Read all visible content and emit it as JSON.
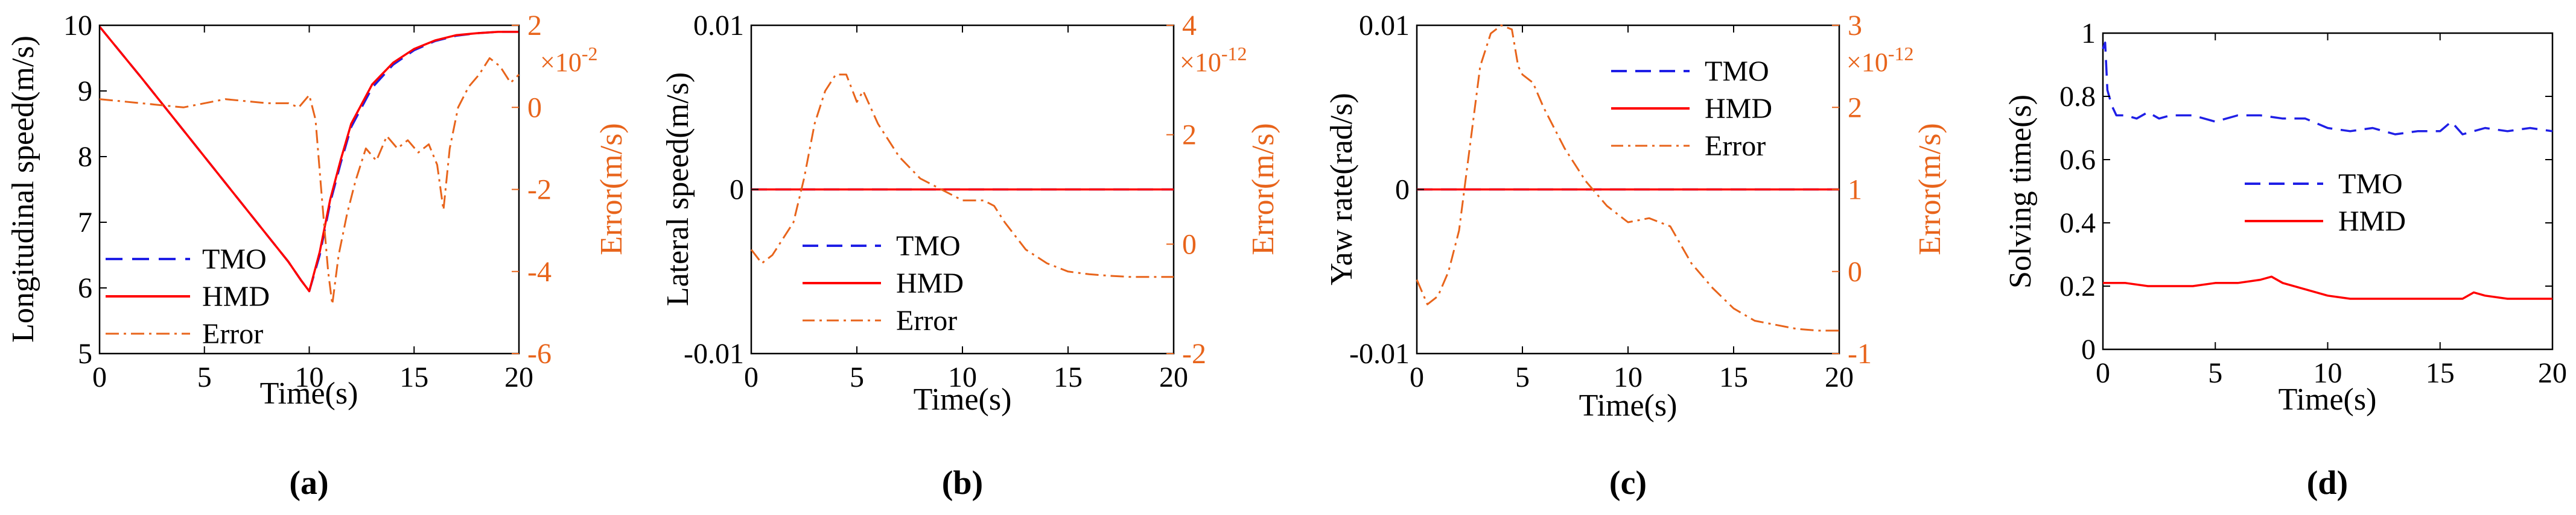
{
  "colors": {
    "tmo": "#1f1fe6",
    "hmd": "#ff0000",
    "error": "#e8641b",
    "axis": "#000000"
  },
  "chart_data": [
    {
      "type": "line",
      "panel_label": "(a)",
      "xlabel": "Time(s)",
      "ylabel": "Longitudinal speed(m/s)",
      "y2label": "Error(m/s)",
      "y2_multiplier": "×10",
      "y2_exponent": "-2",
      "xlim": [
        0,
        20
      ],
      "ylim": [
        5,
        10
      ],
      "y2lim": [
        -6,
        2
      ],
      "xticks": [
        "0",
        "5",
        "10",
        "15",
        "20"
      ],
      "yticks": [
        "5",
        "6",
        "7",
        "8",
        "9",
        "10"
      ],
      "y2ticks": [
        "-6",
        "-4",
        "-2",
        "0",
        "2"
      ],
      "legend_placement": "bottom-left",
      "series": [
        {
          "name": "TMO",
          "axis": "left",
          "style": "dashed",
          "x": [
            0,
            2,
            4,
            6,
            8,
            9,
            9.6,
            10,
            10.5,
            11,
            11.5,
            12,
            13,
            14,
            15,
            16,
            17,
            18,
            19,
            20
          ],
          "y": [
            9.98,
            9.2,
            8.4,
            7.6,
            6.8,
            6.4,
            6.12,
            5.95,
            6.5,
            7.3,
            7.9,
            8.45,
            9.05,
            9.4,
            9.62,
            9.76,
            9.84,
            9.88,
            9.9,
            9.9
          ]
        },
        {
          "name": "HMD",
          "axis": "left",
          "style": "solid",
          "x": [
            0,
            2,
            4,
            6,
            8,
            9,
            9.6,
            10,
            10.5,
            11,
            11.5,
            12,
            13,
            14,
            15,
            16,
            17,
            18,
            19,
            20
          ],
          "y": [
            9.98,
            9.2,
            8.4,
            7.6,
            6.8,
            6.4,
            6.12,
            5.95,
            6.55,
            7.35,
            7.95,
            8.5,
            9.1,
            9.43,
            9.64,
            9.77,
            9.85,
            9.88,
            9.9,
            9.9
          ]
        },
        {
          "name": "Error",
          "axis": "right",
          "style": "dashdot",
          "x": [
            0,
            2,
            4,
            6,
            8,
            9,
            9.5,
            10,
            10.3,
            10.6,
            10.9,
            11.1,
            11.4,
            11.8,
            12.2,
            12.7,
            13.2,
            13.7,
            14.2,
            14.7,
            15.2,
            15.7,
            16.1,
            16.4,
            16.7,
            17.1,
            17.6,
            18.1,
            18.6,
            19.1,
            19.6,
            20
          ],
          "y": [
            0.2,
            0.1,
            0.0,
            0.2,
            0.1,
            0.1,
            0.0,
            0.3,
            -0.3,
            -2.2,
            -4.0,
            -4.8,
            -3.6,
            -2.6,
            -1.8,
            -1.0,
            -1.3,
            -0.7,
            -1.0,
            -0.8,
            -1.1,
            -0.9,
            -1.4,
            -2.5,
            -1.0,
            0.0,
            0.5,
            0.8,
            1.2,
            1.0,
            0.6,
            0.8
          ]
        }
      ]
    },
    {
      "type": "line",
      "panel_label": "(b)",
      "xlabel": "Time(s)",
      "ylabel": "Lateral speed(m/s)",
      "y2label": "Error(m/s)",
      "y2_multiplier": "×10",
      "y2_exponent": "-12",
      "xlim": [
        0,
        20
      ],
      "ylim": [
        -0.01,
        0.01
      ],
      "y2lim": [
        -2,
        4
      ],
      "xticks": [
        "0",
        "5",
        "10",
        "15",
        "20"
      ],
      "yticks": [
        "-0.01",
        "0",
        "0.01"
      ],
      "y2ticks": [
        "-2",
        "0",
        "2",
        "4"
      ],
      "legend_placement": "bottom-left",
      "series": [
        {
          "name": "TMO",
          "axis": "left",
          "style": "dashed",
          "x": [
            0,
            20
          ],
          "y": [
            0,
            0
          ]
        },
        {
          "name": "HMD",
          "axis": "left",
          "style": "solid",
          "x": [
            0,
            20
          ],
          "y": [
            0,
            0
          ]
        },
        {
          "name": "Error",
          "axis": "right",
          "style": "dashdot",
          "x": [
            0,
            0.5,
            1,
            1.5,
            2,
            2.5,
            3,
            3.5,
            4,
            4.5,
            4.8,
            5,
            5.3,
            6,
            7,
            8,
            9,
            10,
            11,
            11.5,
            12,
            13,
            14,
            15,
            16,
            17,
            18,
            19,
            20
          ],
          "y": [
            -0.1,
            -0.35,
            -0.2,
            0.1,
            0.4,
            1.2,
            2.2,
            2.8,
            3.1,
            3.1,
            2.8,
            2.6,
            2.8,
            2.2,
            1.6,
            1.2,
            1.0,
            0.8,
            0.8,
            0.7,
            0.4,
            -0.1,
            -0.35,
            -0.5,
            -0.55,
            -0.58,
            -0.6,
            -0.6,
            -0.6
          ]
        }
      ]
    },
    {
      "type": "line",
      "panel_label": "(c)",
      "xlabel": "Time(s)",
      "ylabel": "Yaw rate(rad/s)",
      "y2label": "Error(m/s)",
      "y2_multiplier": "×10",
      "y2_exponent": "-12",
      "xlim": [
        0,
        20
      ],
      "ylim": [
        -0.01,
        0.01
      ],
      "y2lim": [
        -1,
        3
      ],
      "xticks": [
        "0",
        "5",
        "10",
        "15",
        "20"
      ],
      "yticks": [
        "-0.01",
        "0",
        "0.01"
      ],
      "y2ticks": [
        "-1",
        "0",
        "1",
        "2",
        "3"
      ],
      "legend_placement": "top-right",
      "series": [
        {
          "name": "TMO",
          "axis": "left",
          "style": "dashed",
          "x": [
            0,
            20
          ],
          "y": [
            0,
            0
          ]
        },
        {
          "name": "HMD",
          "axis": "left",
          "style": "solid",
          "x": [
            0,
            20
          ],
          "y": [
            0,
            0
          ]
        },
        {
          "name": "Error",
          "axis": "right",
          "style": "dashdot",
          "x": [
            0,
            0.5,
            1,
            1.5,
            2,
            2.5,
            3,
            3.5,
            4,
            4.5,
            4.8,
            5,
            5.5,
            6,
            7,
            8,
            9,
            10,
            11,
            12,
            13,
            14,
            15,
            16,
            17,
            18,
            19,
            20
          ],
          "y": [
            -0.1,
            -0.4,
            -0.3,
            0.0,
            0.5,
            1.5,
            2.5,
            2.9,
            3.0,
            2.95,
            2.5,
            2.4,
            2.3,
            2.0,
            1.5,
            1.1,
            0.8,
            0.6,
            0.65,
            0.55,
            0.1,
            -0.2,
            -0.45,
            -0.6,
            -0.65,
            -0.7,
            -0.72,
            -0.72
          ]
        }
      ]
    },
    {
      "type": "line",
      "panel_label": "(d)",
      "xlabel": "Time(s)",
      "ylabel": "Solving time(s)",
      "xlim": [
        0,
        20
      ],
      "ylim": [
        0,
        1
      ],
      "xticks": [
        "0",
        "5",
        "10",
        "15",
        "20"
      ],
      "yticks": [
        "0",
        "0.2",
        "0.4",
        "0.6",
        "0.8",
        "1"
      ],
      "legend_placement": "center",
      "series": [
        {
          "name": "TMO",
          "axis": "left",
          "style": "dashed",
          "x": [
            0,
            0.1,
            0.2,
            0.4,
            0.6,
            1,
            1.5,
            2,
            2.5,
            3,
            4,
            5,
            6,
            7,
            8,
            9,
            10,
            11,
            12,
            13,
            14,
            15,
            15.5,
            16,
            17,
            18,
            19,
            20
          ],
          "y": [
            0.95,
            0.97,
            0.82,
            0.77,
            0.74,
            0.74,
            0.73,
            0.75,
            0.73,
            0.74,
            0.74,
            0.72,
            0.74,
            0.74,
            0.73,
            0.73,
            0.7,
            0.69,
            0.7,
            0.68,
            0.69,
            0.69,
            0.72,
            0.68,
            0.7,
            0.69,
            0.7,
            0.69
          ]
        },
        {
          "name": "HMD",
          "axis": "left",
          "style": "solid",
          "x": [
            0,
            1,
            2,
            3,
            4,
            5,
            6,
            7,
            7.5,
            8,
            9,
            10,
            11,
            12,
            13,
            14,
            15,
            16,
            16.5,
            17,
            18,
            19,
            20
          ],
          "y": [
            0.21,
            0.21,
            0.2,
            0.2,
            0.2,
            0.21,
            0.21,
            0.22,
            0.23,
            0.21,
            0.19,
            0.17,
            0.16,
            0.16,
            0.16,
            0.16,
            0.16,
            0.16,
            0.18,
            0.17,
            0.16,
            0.16,
            0.16
          ]
        }
      ]
    }
  ]
}
